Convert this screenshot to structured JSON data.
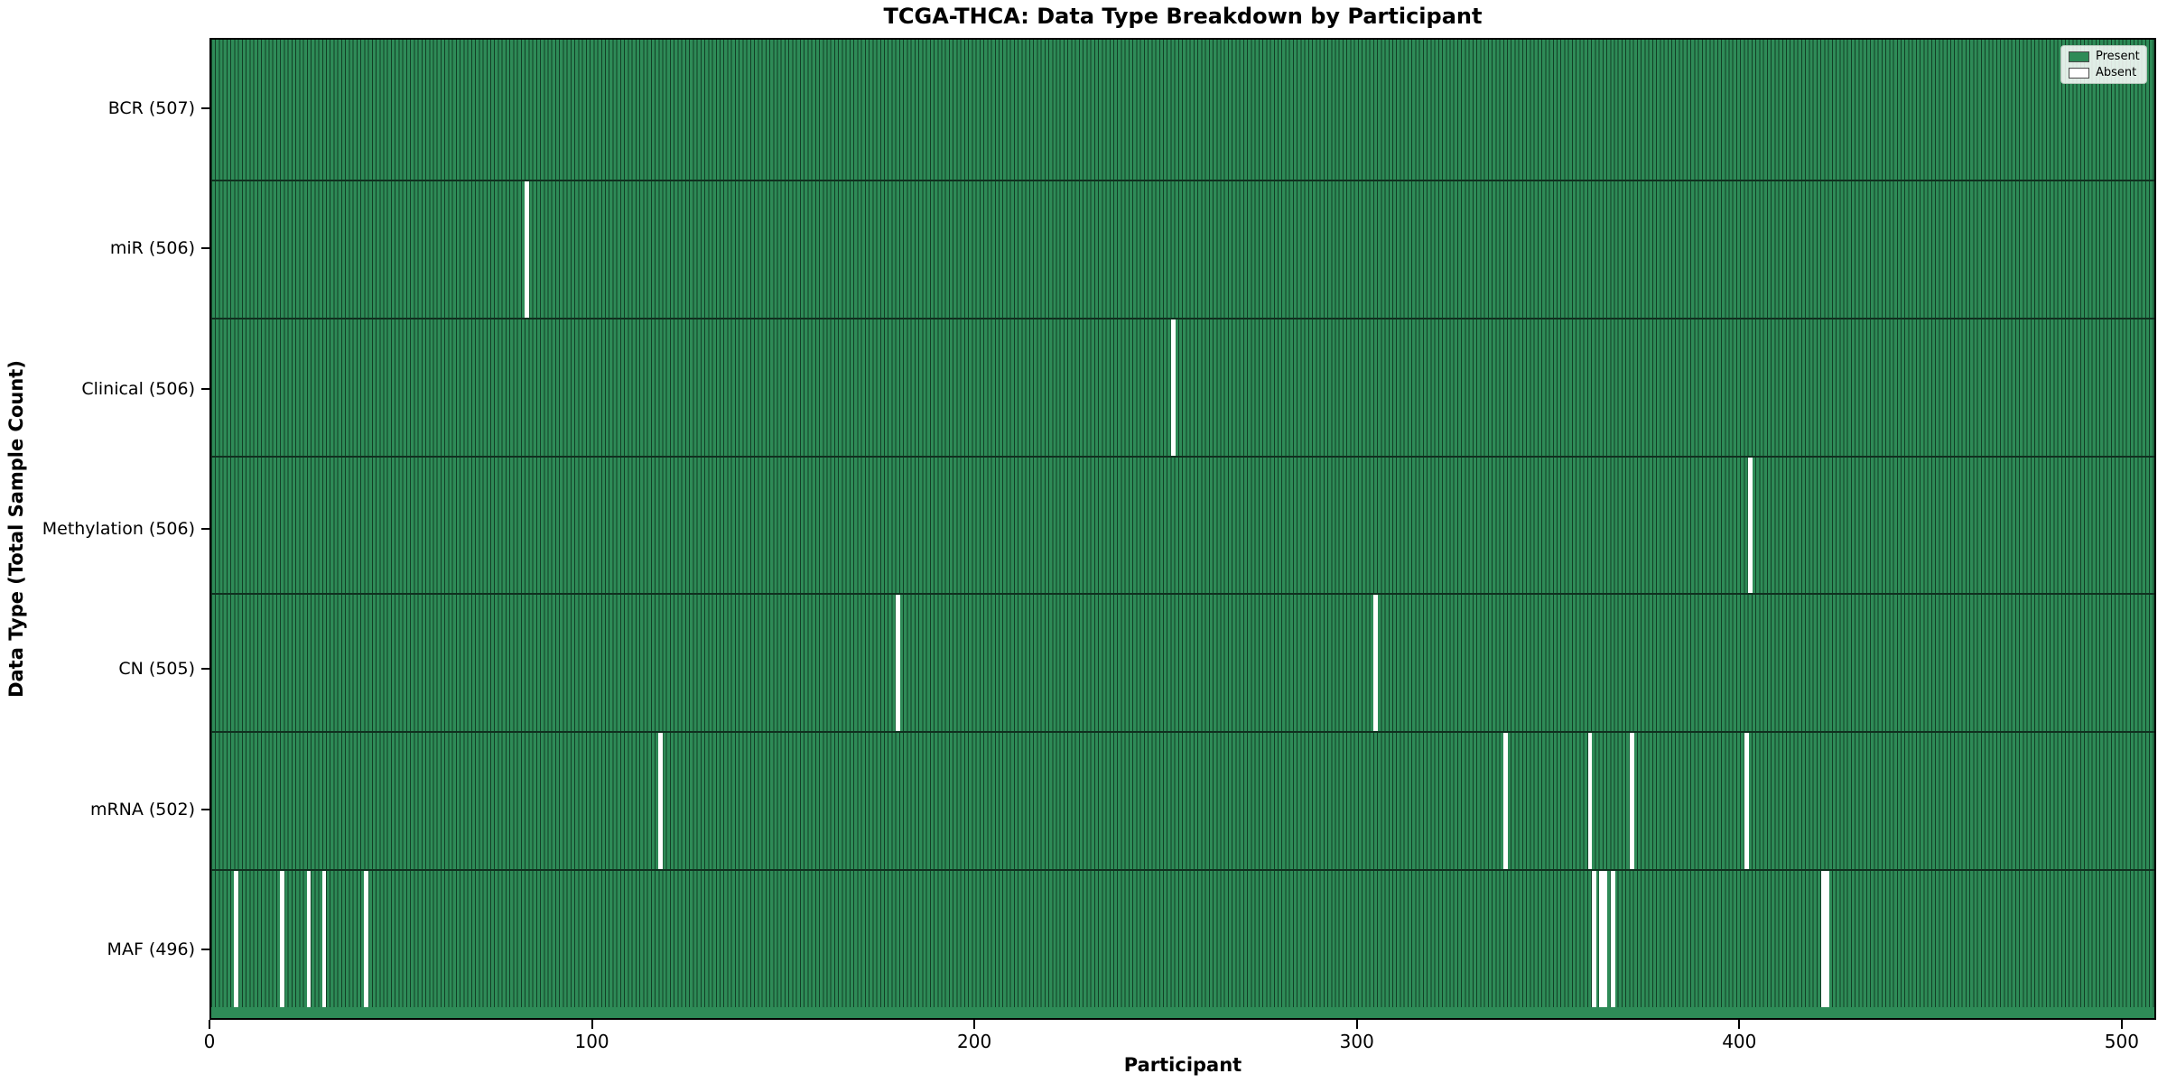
{
  "title": "TCGA-THCA: Data Type Breakdown by Participant",
  "x_axis_label": "Participant",
  "y_axis_label": "Data Type (Total Sample Count)",
  "x_ticks": [
    0,
    100,
    200,
    300,
    400,
    500
  ],
  "legend": {
    "present_label": "Present",
    "absent_label": "Absent"
  },
  "colors": {
    "present": "#2e8b57",
    "bar_edge": "#123f26",
    "absent": "#ffffff",
    "row_separator": "#10301f"
  },
  "chart_data": {
    "type": "heatmap",
    "title": "TCGA-THCA: Data Type Breakdown by Participant",
    "xlabel": "Participant",
    "ylabel": "Data Type (Total Sample Count)",
    "legend_entries": [
      "Present",
      "Absent"
    ],
    "legend_position": "upper right",
    "xlim": [
      0,
      509
    ],
    "x_tick_values": [
      0,
      100,
      200,
      300,
      400,
      500
    ],
    "n_participants": 507,
    "cell_values": "1 = Present (green), 0 = Absent (white)",
    "rows": [
      {
        "label": "BCR (507)",
        "data_type": "BCR",
        "total_sample_count": 507,
        "absent_participants": []
      },
      {
        "label": "miR (506)",
        "data_type": "miR",
        "total_sample_count": 506,
        "absent_participants": [
          82
        ]
      },
      {
        "label": "Clinical (506)",
        "data_type": "Clinical",
        "total_sample_count": 506,
        "absent_participants": [
          251
        ]
      },
      {
        "label": "Methylation (506)",
        "data_type": "Methylation",
        "total_sample_count": 506,
        "absent_participants": [
          402
        ]
      },
      {
        "label": "CN (505)",
        "data_type": "CN",
        "total_sample_count": 505,
        "absent_participants": [
          179,
          304
        ]
      },
      {
        "label": "mRNA (502)",
        "data_type": "mRNA",
        "total_sample_count": 502,
        "absent_participants": [
          117,
          338,
          360,
          371,
          401
        ]
      },
      {
        "label": "MAF (496)",
        "data_type": "MAF",
        "total_sample_count": 496,
        "absent_participants": [
          6,
          18,
          25,
          29,
          40,
          361,
          363,
          364,
          366,
          421,
          422
        ]
      }
    ]
  }
}
